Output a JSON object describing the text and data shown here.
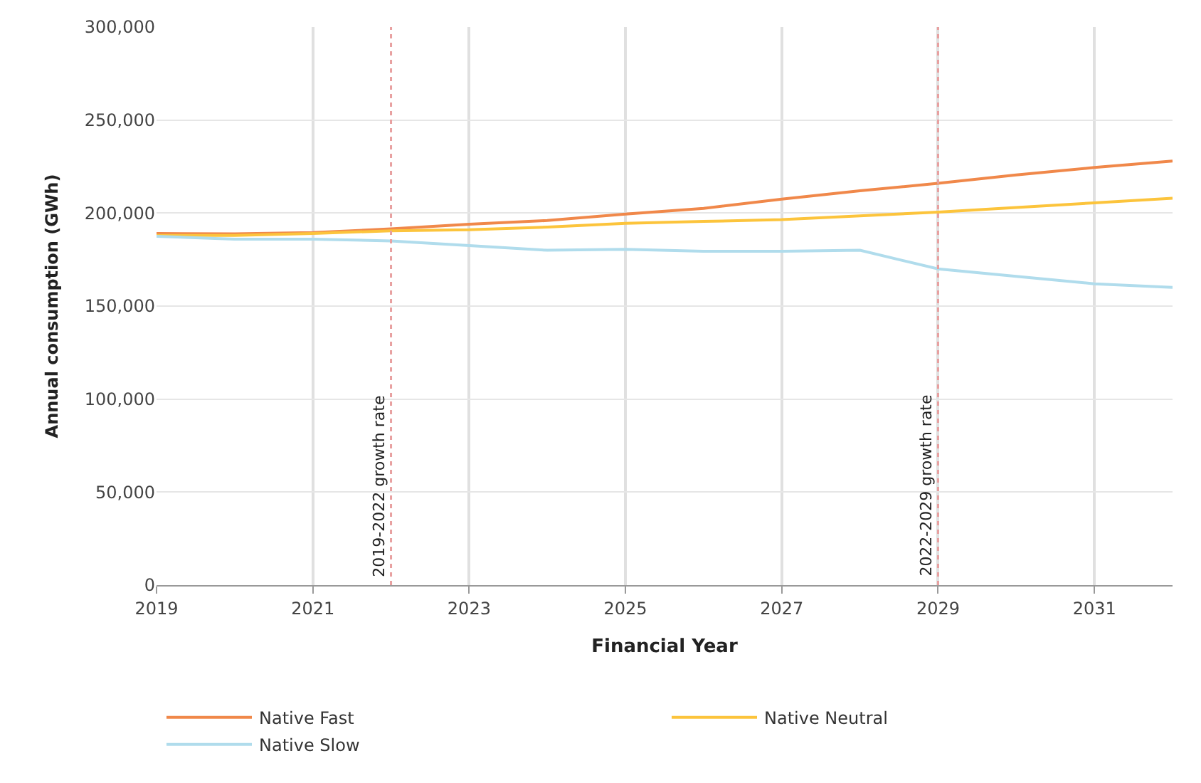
{
  "chart_data": {
    "type": "line",
    "xlabel": "Financial Year",
    "ylabel": "Annual consumption (GWh)",
    "x": [
      2019,
      2020,
      2021,
      2022,
      2023,
      2024,
      2025,
      2026,
      2027,
      2028,
      2029,
      2030,
      2031,
      2032
    ],
    "series": [
      {
        "name": "Native Fast",
        "color": "#f0884a",
        "values": [
          189000,
          188800,
          189500,
          191500,
          194000,
          196000,
          199500,
          202500,
          207500,
          212000,
          216000,
          220500,
          224500,
          228000
        ]
      },
      {
        "name": "Native Neutral",
        "color": "#fcc43c",
        "values": [
          188000,
          188000,
          189000,
          190500,
          191000,
          192500,
          194500,
          195500,
          196500,
          198500,
          200500,
          203000,
          205500,
          208000
        ]
      },
      {
        "name": "Native Slow",
        "color": "#b0dcec",
        "values": [
          187500,
          186000,
          186000,
          185000,
          182500,
          180000,
          180500,
          179500,
          179500,
          180000,
          170000,
          166000,
          162000,
          160000
        ]
      }
    ],
    "xlim": [
      2019,
      2032
    ],
    "xticks": [
      2019,
      2021,
      2023,
      2025,
      2027,
      2029,
      2031
    ],
    "ylim": [
      0,
      300000
    ],
    "yticks": [
      {
        "value": 0,
        "label": "0"
      },
      {
        "value": 50000,
        "label": "50,000"
      },
      {
        "value": 100000,
        "label": "100,000"
      },
      {
        "value": 150000,
        "label": "150,000"
      },
      {
        "value": 200000,
        "label": "200,000"
      },
      {
        "value": 250000,
        "label": "250,000"
      },
      {
        "value": 300000,
        "label": "300,000"
      }
    ],
    "grid": true,
    "legend": "bottom",
    "marker": "none",
    "line_style": "solid",
    "ref_lines": [
      {
        "axis": "x",
        "value": 2022,
        "label": "2019-2022 growth rate",
        "color": "#e8a0a0",
        "line_style": "dotted"
      },
      {
        "axis": "x",
        "value": 2029,
        "label": "2022-2029 growth rate",
        "color": "#e8a0a0",
        "line_style": "dotted"
      }
    ]
  }
}
